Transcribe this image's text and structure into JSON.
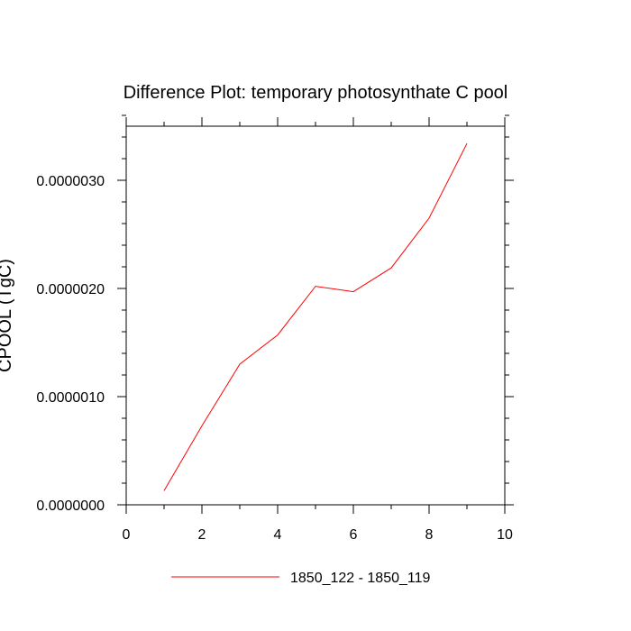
{
  "chart_data": {
    "type": "line",
    "title": "Difference Plot: temporary photosynthate C pool",
    "ylabel": "CPOOL (TgC)",
    "xlabel": "",
    "xlim": [
      0,
      10
    ],
    "ylim": [
      0,
      3.5e-06
    ],
    "xticks": [
      0,
      2,
      4,
      6,
      8,
      10
    ],
    "xtick_labels": [
      "0",
      "2",
      "4",
      "6",
      "8",
      "10"
    ],
    "yticks": [
      0,
      1e-06,
      2e-06,
      3e-06
    ],
    "ytick_labels": [
      "0.0000000",
      "0.0000010",
      "0.0000020",
      "0.0000030"
    ],
    "legend_position": "bottom-center",
    "series": [
      {
        "name": "1850_122 - 1850_119",
        "color": "#ff0000",
        "x": [
          1,
          2,
          3,
          4,
          5,
          6,
          7,
          8,
          9
        ],
        "y": [
          1.3e-07,
          7.3e-07,
          1.3e-06,
          1.57e-06,
          2.02e-06,
          1.97e-06,
          2.19e-06,
          2.65e-06,
          3.34e-06
        ]
      }
    ]
  }
}
